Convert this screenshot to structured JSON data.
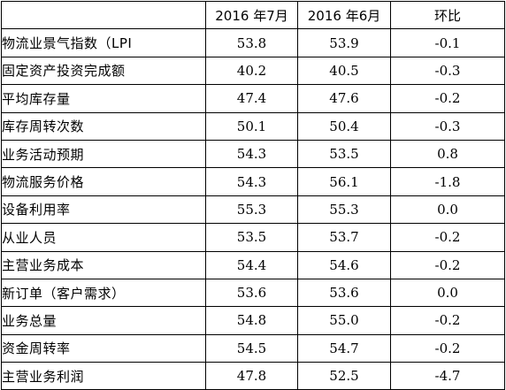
{
  "table": {
    "headers": [
      "",
      "2016 年7月",
      "2016 年6月",
      "环比"
    ],
    "rows": [
      {
        "label": "物流业景气指数（LPI",
        "jul": "53.8",
        "jun": "53.9",
        "mom": "-0.1"
      },
      {
        "label": "固定资产投资完成额",
        "jul": "40.2",
        "jun": "40.5",
        "mom": "-0.3"
      },
      {
        "label": "平均库存量",
        "jul": "47.4",
        "jun": "47.6",
        "mom": "-0.2"
      },
      {
        "label": "库存周转次数",
        "jul": "50.1",
        "jun": "50.4",
        "mom": "-0.3"
      },
      {
        "label": "业务活动预期",
        "jul": "54.3",
        "jun": "53.5",
        "mom": "0.8"
      },
      {
        "label": "物流服务价格",
        "jul": "54.3",
        "jun": "56.1",
        "mom": "-1.8"
      },
      {
        "label": "设备利用率",
        "jul": "55.3",
        "jun": "55.3",
        "mom": "0.0"
      },
      {
        "label": "从业人员",
        "jul": "53.5",
        "jun": "53.7",
        "mom": "-0.2"
      },
      {
        "label": "主营业务成本",
        "jul": "54.4",
        "jun": "54.6",
        "mom": "-0.2"
      },
      {
        "label": "新订单（客户需求）",
        "jul": "53.6",
        "jun": "53.6",
        "mom": "0.0"
      },
      {
        "label": "业务总量",
        "jul": "54.8",
        "jun": "55.0",
        "mom": "-0.2"
      },
      {
        "label": "资金周转率",
        "jul": "54.5",
        "jun": "54.7",
        "mom": "-0.2"
      },
      {
        "label": "主营业务利润",
        "jul": "47.8",
        "jun": "52.5",
        "mom": "-4.7"
      }
    ]
  }
}
